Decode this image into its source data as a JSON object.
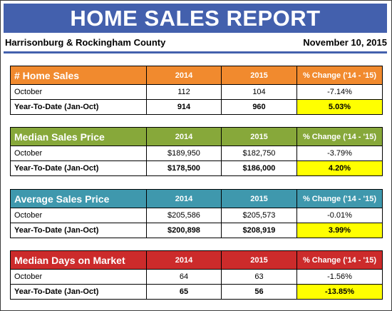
{
  "header": {
    "title": "HOME SALES REPORT",
    "region": "Harrisonburg & Rockingham County",
    "date": "November 10, 2015"
  },
  "colors": {
    "banner": "#4360ad",
    "home_sales": "#f18a2e",
    "median_price": "#87a83a",
    "avg_price": "#3f98ad",
    "days_on_market": "#cc2b2b",
    "highlight": "#ffff00"
  },
  "tables": [
    {
      "title": "# Home Sales",
      "col_2014": "2014",
      "col_2015": "2015",
      "col_change": "% Change ('14 - '15)",
      "rows": [
        {
          "label": "October",
          "v2014": "112",
          "v2015": "104",
          "change": "-7.14%"
        },
        {
          "label": "Year-To-Date (Jan-Oct)",
          "v2014": "914",
          "v2015": "960",
          "change": "5.03%"
        }
      ]
    },
    {
      "title": "Median Sales Price",
      "col_2014": "2014",
      "col_2015": "2015",
      "col_change": "% Change ('14 - '15)",
      "rows": [
        {
          "label": "October",
          "v2014": "$189,950",
          "v2015": "$182,750",
          "change": "-3.79%"
        },
        {
          "label": "Year-To-Date (Jan-Oct)",
          "v2014": "$178,500",
          "v2015": "$186,000",
          "change": "4.20%"
        }
      ]
    },
    {
      "title": "Average Sales Price",
      "col_2014": "2014",
      "col_2015": "2015",
      "col_change": "% Change ('14 - '15)",
      "rows": [
        {
          "label": "October",
          "v2014": "$205,586",
          "v2015": "$205,573",
          "change": "-0.01%"
        },
        {
          "label": "Year-To-Date (Jan-Oct)",
          "v2014": "$200,898",
          "v2015": "$208,919",
          "change": "3.99%"
        }
      ]
    },
    {
      "title": "Median Days on Market",
      "col_2014": "2014",
      "col_2015": "2015",
      "col_change": "% Change ('14 - '15)",
      "rows": [
        {
          "label": "October",
          "v2014": "64",
          "v2015": "63",
          "change": "-1.56%"
        },
        {
          "label": "Year-To-Date (Jan-Oct)",
          "v2014": "65",
          "v2015": "56",
          "change": "-13.85%"
        }
      ]
    }
  ]
}
